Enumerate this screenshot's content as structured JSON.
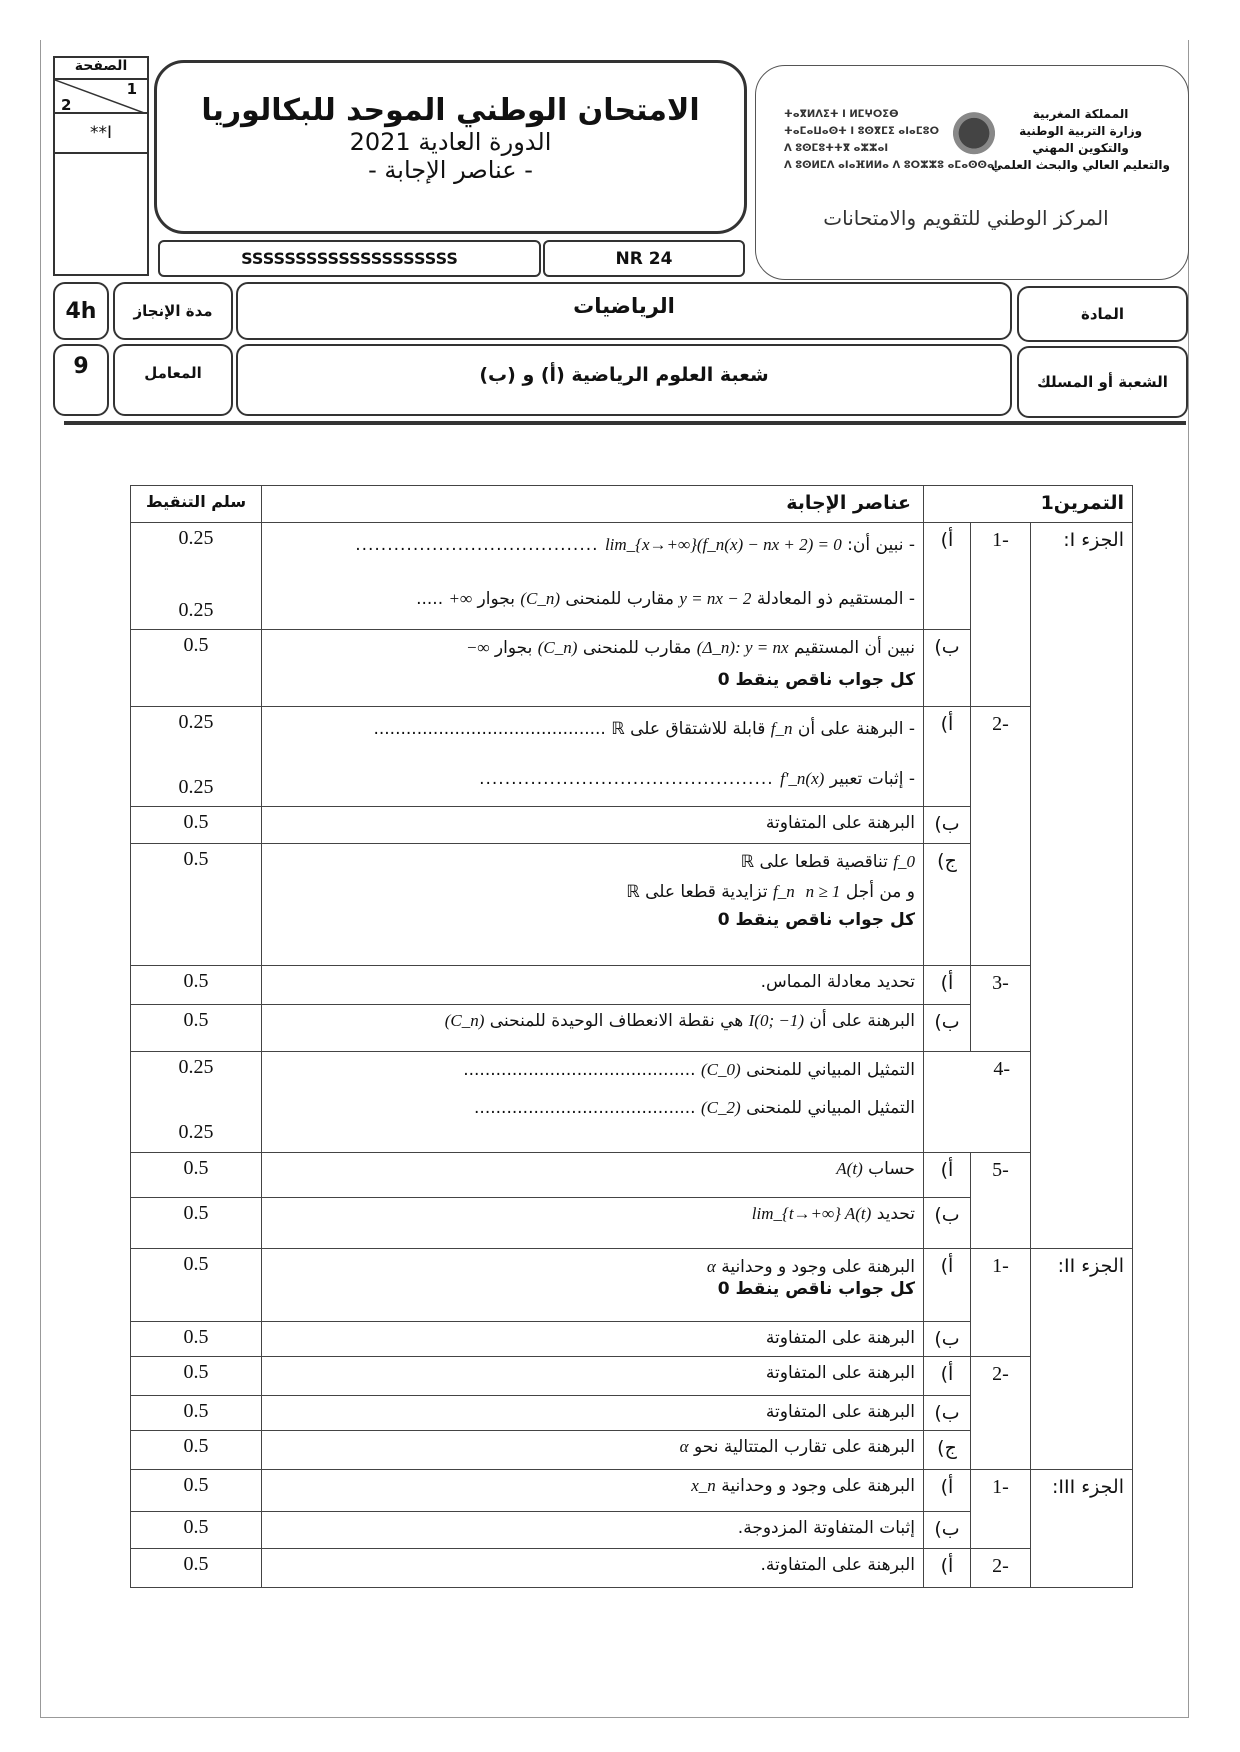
{
  "header": {
    "page_label": "الصفحة",
    "page_current": "1",
    "page_total": "2",
    "page_code": "**I",
    "title": "الامتحان الوطني الموحد للبكالوريا",
    "session": "الدورة العادية 2021",
    "subtitle": "- عناصر الإجابة -",
    "code_s": "SSSSSSSSSSSSSSSSSSSS",
    "code_nr": "NR 24",
    "ministry_ar": [
      "المملكة المغربية",
      "وزارة التربية الوطنية",
      "والتكوين المهني",
      "والتعليم العالي والبحث العلمي"
    ],
    "ministry_tif": [
      "ⵜⴰⴳⵍⴷⵉⵜ ⵏ ⵍⵎⵖⵔⵉⴱ",
      "ⵜⴰⵎⴰⵡⴰⵙⵜ ⵏ ⵓⵙⴳⵎⵉ ⴰⵏⴰⵎⵓⵔ",
      "ⴷ ⵓⵙⵎⵓⵜⵜⴳ ⴰⵣⵣⴰⵏ",
      "ⴷ ⵓⵙⵍⵎⴷ ⴰⵏⴰⴼⵍⵍⴰ ⴷ ⵓⵔⵣⵣⵓ ⴰⵎⴰⵙⵙⴰⵏ"
    ],
    "center": "المركز الوطني للتقويم والامتحانات",
    "duration_value": "4h",
    "duration_label": "مدة الإنجاز",
    "subject_value": "الرياضيات",
    "subject_label": "المادة",
    "coef_value": "9",
    "coef_label": "المعامل",
    "branch_value": "شعبة العلوم الرياضية (أ) و (ب)",
    "branch_label": "الشعبة أو المسلك"
  },
  "table": {
    "h_exercise": "التمرين1",
    "h_elements": "عناصر الإجابة",
    "h_score": "سلم التنقيط",
    "part1": "الجزء I:",
    "part2": "الجزء II:",
    "part3": "الجزء III:",
    "rows": [
      {
        "num": "-1",
        "let": "أ)",
        "lines": [
          "- نبين أن: ",
          "lim_{x→+∞}(f_n(x) − nx + 2) = 0",
          " ......................................"
        ],
        "lines2": [
          "- المستقيم ذو المعادلة ",
          "y = nx − 2",
          " مقارب للمنحنى ",
          "(C_n)",
          " بجوار ",
          "+∞",
          " ....."
        ],
        "score": [
          "0.25",
          "0.25"
        ]
      },
      {
        "let": "ب)",
        "text": "نبين أن المستقيم ",
        "math": "(Δ_n): y = nx",
        "text2": " مقارب للمنحنى ",
        "math2": "(C_n)",
        "text3": " بجوار ",
        "math3": "−∞",
        "bold": "كل جواب ناقص ينقط 0",
        "score": "0.5"
      },
      {
        "num": "-2",
        "let": "أ)",
        "l1a": "- البرهنة على أن ",
        "l1m": "f_n",
        "l1b": " قابلة للاشتقاق على ",
        "l1r": "ℝ",
        "l1d": " ...........................................",
        "l2a": "- إثبات تعبير ",
        "l2m": "f'_n(x)",
        "l2d": " ..............................................",
        "score": [
          "0.25",
          "0.25"
        ]
      },
      {
        "let": "ب)",
        "text": "البرهنة على المتفاوتة",
        "score": "0.5"
      },
      {
        "let": "ج)",
        "l1m": "f_0",
        "l1": " تناقصية قطعا على ",
        "r": "ℝ",
        "l2a": "و من أجل ",
        "l2m": "n ≥ 1",
        "l2m2": "f_n",
        "l2b": " تزايدية قطعا على ",
        "bold": "كل جواب ناقص ينقط 0",
        "score": "0.5"
      },
      {
        "num": "-3",
        "let": "أ)",
        "text": "تحديد معادلة المماس.",
        "score": "0.5"
      },
      {
        "let": "ب)",
        "text": "البرهنة على أن ",
        "math": "I(0; −1)",
        "text2": " هي نقطة الانعطاف الوحيدة للمنحنى ",
        "math2": "(C_n)",
        "score": "0.5"
      },
      {
        "num": "-4",
        "l1": "التمثيل المبياني للمنحنى ",
        "m1": "(C_0)",
        "d1": " ...........................................",
        "l2": "التمثيل المبياني للمنحنى ",
        "m2": "(C_2)",
        "d2": " .........................................",
        "score": [
          "0.25",
          "0.25"
        ]
      },
      {
        "num": "-5",
        "let": "أ)",
        "text": "حساب ",
        "math": "A(t)",
        "score": "0.5"
      },
      {
        "let": "ب)",
        "text": "تحديد ",
        "math": "lim_{t→+∞} A(t)",
        "score": "0.5"
      },
      {
        "num": "-1",
        "let": "أ)",
        "text": "البرهنة على وجود و وحدانية ",
        "math": "α",
        "bold": "كل جواب ناقص ينقط 0",
        "score": "0.5"
      },
      {
        "let": "ب)",
        "text": "البرهنة على المتفاوتة",
        "score": "0.5"
      },
      {
        "num": "-2",
        "let": "أ)",
        "text": "البرهنة على المتفاوتة",
        "score": "0.5"
      },
      {
        "let": "ب)",
        "text": "البرهنة على المتفاوتة",
        "score": "0.5"
      },
      {
        "let": "ج)",
        "text": "البرهنة على تقارب المتتالية نحو ",
        "math": "α",
        "score": "0.5"
      },
      {
        "num": "-1",
        "let": "أ)",
        "text": "البرهنة على وجود و وحدانية ",
        "math": "x_n",
        "score": "0.5"
      },
      {
        "let": "ب)",
        "text": "إثبات المتفاوتة المزدوجة.",
        "score": "0.5"
      },
      {
        "num": "-2",
        "let": "أ)",
        "text": "البرهنة على المتفاوتة.",
        "score": "0.5"
      }
    ]
  }
}
